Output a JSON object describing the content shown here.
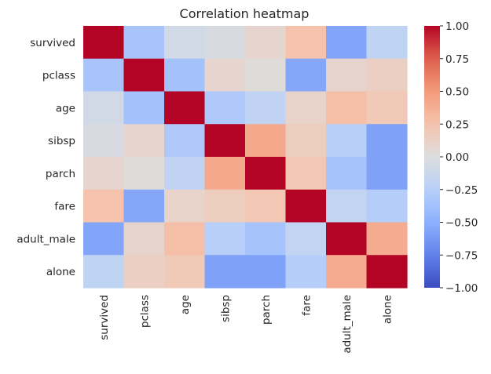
{
  "chart_data": {
    "type": "heatmap",
    "title": "Correlation heatmap",
    "xlabel": "",
    "ylabel": "",
    "row_labels": [
      "survived",
      "pclass",
      "age",
      "sibsp",
      "parch",
      "fare",
      "adult_male",
      "alone"
    ],
    "col_labels": [
      "survived",
      "pclass",
      "age",
      "sibsp",
      "parch",
      "fare",
      "adult_male",
      "alone"
    ],
    "values": [
      [
        1.0,
        -0.34,
        -0.08,
        -0.04,
        0.08,
        0.26,
        -0.56,
        -0.2
      ],
      [
        -0.34,
        1.0,
        -0.37,
        0.08,
        0.02,
        -0.55,
        0.09,
        0.14
      ],
      [
        -0.08,
        -0.37,
        1.0,
        -0.31,
        -0.19,
        0.1,
        0.28,
        0.2
      ],
      [
        -0.04,
        0.08,
        -0.31,
        1.0,
        0.41,
        0.16,
        -0.25,
        -0.58
      ],
      [
        0.08,
        0.02,
        -0.19,
        0.41,
        1.0,
        0.22,
        -0.35,
        -0.58
      ],
      [
        0.26,
        -0.55,
        0.1,
        0.16,
        0.22,
        1.0,
        -0.18,
        -0.27
      ],
      [
        -0.56,
        0.09,
        0.28,
        -0.25,
        -0.35,
        -0.18,
        1.0,
        0.4
      ],
      [
        -0.2,
        0.14,
        0.2,
        -0.58,
        -0.58,
        -0.27,
        0.4,
        1.0
      ]
    ],
    "vmin": -1.0,
    "vmax": 1.0,
    "colormap": "coolwarm",
    "colorbar_ticks": [
      1.0,
      0.75,
      0.5,
      0.25,
      0.0,
      -0.25,
      -0.5,
      -0.75,
      -1.0
    ],
    "colorbar_tick_labels": [
      "1.00",
      "0.75",
      "0.50",
      "0.25",
      "0.00",
      "−0.25",
      "−0.50",
      "−0.75",
      "−1.00"
    ],
    "grid": false,
    "colorbar_position": "right"
  }
}
